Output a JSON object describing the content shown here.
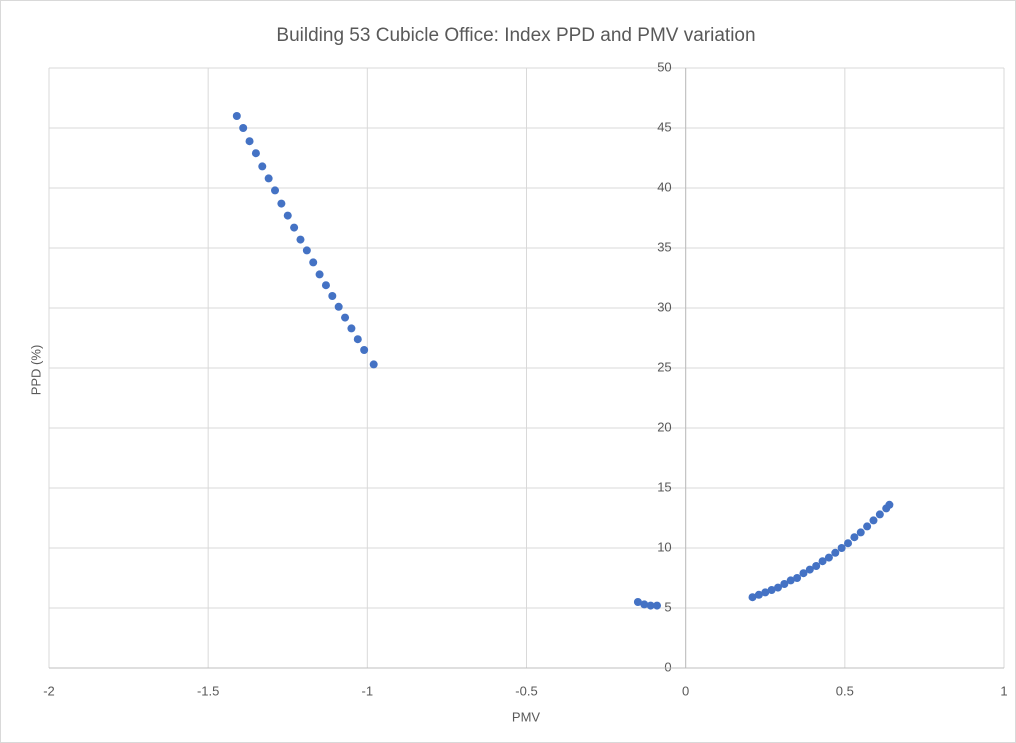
{
  "chart_data": {
    "type": "scatter",
    "title": "Building 53 Cubicle Office: Index PPD and PMV variation",
    "x_label": "PMV",
    "y_label": "PPD (%)",
    "series": [
      {
        "color": "#4472c4",
        "x": [
          -1.41,
          -1.39,
          -1.37,
          -1.35,
          -1.33,
          -1.31,
          -1.29,
          -1.27,
          -1.25,
          -1.23,
          -1.21,
          -1.19,
          -1.17,
          -1.15,
          -1.13,
          -1.11,
          -1.09,
          -1.07,
          -1.05,
          -1.03,
          -1.01,
          -0.98,
          -0.15,
          -0.13,
          -0.11,
          -0.09,
          0.21,
          0.23,
          0.25,
          0.27,
          0.29,
          0.31,
          0.33,
          0.35,
          0.37,
          0.39,
          0.41,
          0.43,
          0.45,
          0.47,
          0.49,
          0.51,
          0.53,
          0.55,
          0.57,
          0.59,
          0.61,
          0.63,
          0.64
        ],
        "values": [
          46.0,
          45.0,
          43.9,
          42.9,
          41.8,
          40.8,
          39.8,
          38.7,
          37.7,
          36.7,
          35.7,
          34.8,
          33.8,
          32.8,
          31.9,
          31.0,
          30.1,
          29.2,
          28.3,
          27.4,
          26.5,
          25.3,
          5.5,
          5.3,
          5.2,
          5.2,
          5.9,
          6.1,
          6.3,
          6.5,
          6.7,
          7.0,
          7.3,
          7.5,
          7.9,
          8.2,
          8.5,
          8.9,
          9.2,
          9.6,
          10.0,
          10.4,
          10.9,
          11.3,
          11.8,
          12.3,
          12.8,
          13.3,
          13.6
        ]
      }
    ],
    "xlim": [
      -2,
      1
    ],
    "xticks": [
      -2,
      -1.5,
      -1,
      -0.5,
      0,
      0.5,
      1
    ],
    "ylim": [
      0,
      50
    ],
    "yticks": [
      0,
      5,
      10,
      15,
      20,
      25,
      30,
      35,
      40,
      45,
      50
    ],
    "grid": true
  }
}
